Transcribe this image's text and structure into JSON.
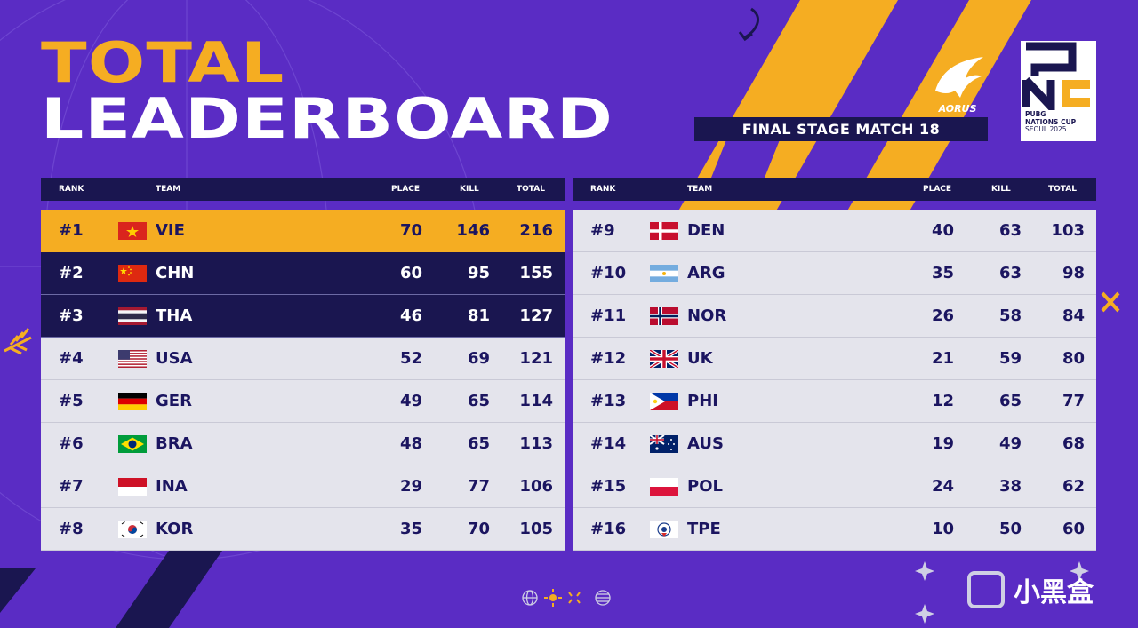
{
  "header": {
    "title_line1": "TOTAL",
    "title_line2": "LEADERBOARD",
    "stage": "FINAL STAGE MATCH 18",
    "sponsor_logo": "AORUS",
    "event_logo_text": [
      "PUBG",
      "NATIONS CUP",
      "SEOUL 2025"
    ]
  },
  "columns": {
    "rank": "RANK",
    "team": "TEAM",
    "place": "PLACE",
    "kill": "KILL",
    "total": "TOTAL"
  },
  "colors": {
    "background": "#5a2cc4",
    "gold": "#f5ad22",
    "navy": "#1a1650",
    "row_light": "#e4e4ec"
  },
  "left_rows": [
    {
      "rank": "#1",
      "team": "VIE",
      "flag": "vietnam-flag",
      "place": "70",
      "kill": "146",
      "total": "216",
      "style": "gold"
    },
    {
      "rank": "#2",
      "team": "CHN",
      "flag": "china-flag",
      "place": "60",
      "kill": "95",
      "total": "155",
      "style": "dark"
    },
    {
      "rank": "#3",
      "team": "THA",
      "flag": "thailand-flag",
      "place": "46",
      "kill": "81",
      "total": "127",
      "style": "dark"
    },
    {
      "rank": "#4",
      "team": "USA",
      "flag": "usa-flag",
      "place": "52",
      "kill": "69",
      "total": "121",
      "style": "light"
    },
    {
      "rank": "#5",
      "team": "GER",
      "flag": "germany-flag",
      "place": "49",
      "kill": "65",
      "total": "114",
      "style": "light"
    },
    {
      "rank": "#6",
      "team": "BRA",
      "flag": "brazil-flag",
      "place": "48",
      "kill": "65",
      "total": "113",
      "style": "light"
    },
    {
      "rank": "#7",
      "team": "INA",
      "flag": "indonesia-flag",
      "place": "29",
      "kill": "77",
      "total": "106",
      "style": "light"
    },
    {
      "rank": "#8",
      "team": "KOR",
      "flag": "korea-flag",
      "place": "35",
      "kill": "70",
      "total": "105",
      "style": "light"
    }
  ],
  "right_rows": [
    {
      "rank": "#9",
      "team": "DEN",
      "flag": "denmark-flag",
      "place": "40",
      "kill": "63",
      "total": "103",
      "style": "light"
    },
    {
      "rank": "#10",
      "team": "ARG",
      "flag": "argentina-flag",
      "place": "35",
      "kill": "63",
      "total": "98",
      "style": "light"
    },
    {
      "rank": "#11",
      "team": "NOR",
      "flag": "norway-flag",
      "place": "26",
      "kill": "58",
      "total": "84",
      "style": "light"
    },
    {
      "rank": "#12",
      "team": "UK",
      "flag": "uk-flag",
      "place": "21",
      "kill": "59",
      "total": "80",
      "style": "light"
    },
    {
      "rank": "#13",
      "team": "PHI",
      "flag": "philippines-flag",
      "place": "12",
      "kill": "65",
      "total": "77",
      "style": "light"
    },
    {
      "rank": "#14",
      "team": "AUS",
      "flag": "australia-flag",
      "place": "19",
      "kill": "49",
      "total": "68",
      "style": "light"
    },
    {
      "rank": "#15",
      "team": "POL",
      "flag": "poland-flag",
      "place": "24",
      "kill": "38",
      "total": "62",
      "style": "light"
    },
    {
      "rank": "#16",
      "team": "TPE",
      "flag": "chinese-taipei-flag",
      "place": "10",
      "kill": "50",
      "total": "60",
      "style": "light"
    }
  ],
  "watermark": {
    "text": "小黑盒"
  }
}
